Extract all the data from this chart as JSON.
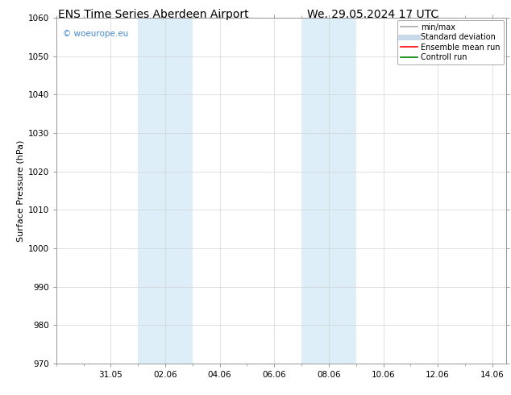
{
  "title_left": "ENS Time Series Aberdeen Airport",
  "title_right": "We. 29.05.2024 17 UTC",
  "ylabel": "Surface Pressure (hPa)",
  "ylim": [
    970,
    1060
  ],
  "yticks": [
    970,
    980,
    990,
    1000,
    1010,
    1020,
    1030,
    1040,
    1050,
    1060
  ],
  "x_min": 0.0,
  "x_max": 16.5,
  "xtick_labels": [
    "31.05",
    "02.06",
    "04.06",
    "06.06",
    "08.06",
    "10.06",
    "12.06",
    "14.06"
  ],
  "xtick_positions": [
    2,
    4,
    6,
    8,
    10,
    12,
    14,
    16
  ],
  "shaded_bands": [
    {
      "x_start": 3.0,
      "x_end": 5.0,
      "color": "#ddeef8"
    },
    {
      "x_start": 9.0,
      "x_end": 11.0,
      "color": "#ddeef8"
    }
  ],
  "watermark_text": "© woeurope.eu",
  "watermark_color": "#4488cc",
  "background_color": "#ffffff",
  "legend_items": [
    {
      "label": "min/max",
      "color": "#aaaaaa",
      "lw": 1.2,
      "style": "solid"
    },
    {
      "label": "Standard deviation",
      "color": "#c8daea",
      "lw": 5,
      "style": "solid"
    },
    {
      "label": "Ensemble mean run",
      "color": "#ff0000",
      "lw": 1.2,
      "style": "solid"
    },
    {
      "label": "Controll run",
      "color": "#008000",
      "lw": 1.2,
      "style": "solid"
    }
  ],
  "title_fontsize": 10,
  "axis_fontsize": 8,
  "tick_fontsize": 7.5,
  "legend_fontsize": 7,
  "watermark_fontsize": 7.5
}
